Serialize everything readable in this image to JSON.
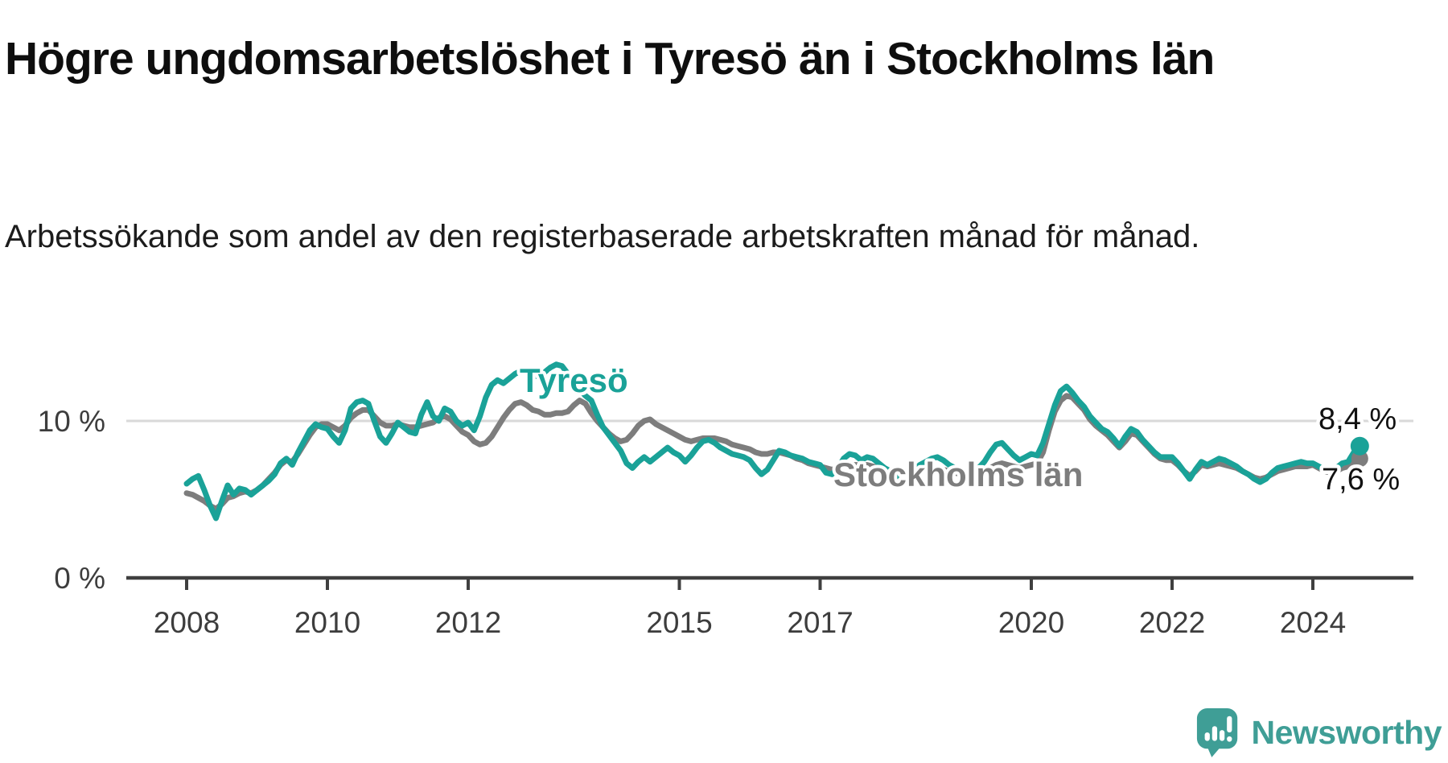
{
  "header": {
    "title": "Högre ungdomsarbetslöshet i Tyresö än i Stockholms län",
    "subtitle": "Arbetssökande som andel av den registerbaserade arbetskraften månad för månad."
  },
  "chart_data": {
    "type": "line",
    "title": "Högre ungdomsarbetslöshet i Tyresö än i Stockholms län",
    "subtitle": "Arbetssökande som andel av den registerbaserade arbetskraften månad för månad.",
    "x_start_year": 2008,
    "frequency": "monthly",
    "x_last_point": "2024-09",
    "xlim_years": [
      2007.1,
      2025.4
    ],
    "ylim": [
      0,
      14.5
    ],
    "y_unit": "%",
    "grid": "single-horizontal-gridline-at-10",
    "legend_position": "inline-labels-on-lines",
    "x_ticks": [
      {
        "value": 2008,
        "label": "2008"
      },
      {
        "value": 2010,
        "label": "2010"
      },
      {
        "value": 2012,
        "label": "2012"
      },
      {
        "value": 2015,
        "label": "2015"
      },
      {
        "value": 2017,
        "label": "2017"
      },
      {
        "value": 2020,
        "label": "2020"
      },
      {
        "value": 2022,
        "label": "2022"
      },
      {
        "value": 2024,
        "label": "2024"
      }
    ],
    "y_ticks": [
      {
        "value": 0,
        "label": "0 %"
      },
      {
        "value": 10,
        "label": "10 %"
      }
    ],
    "series": [
      {
        "name": "Tyresö",
        "color": "#1aa298",
        "end_value": 8.4,
        "end_label": "8,4 %",
        "values": [
          6.0,
          6.3,
          6.5,
          5.6,
          4.6,
          3.8,
          4.9,
          5.9,
          5.3,
          5.7,
          5.6,
          5.3,
          5.6,
          5.9,
          6.2,
          6.6,
          7.3,
          7.6,
          7.2,
          8.0,
          8.7,
          9.4,
          9.8,
          9.6,
          9.5,
          9.0,
          8.6,
          9.4,
          10.8,
          11.2,
          11.3,
          11.1,
          10.0,
          9.0,
          8.6,
          9.2,
          9.9,
          9.6,
          9.3,
          9.2,
          10.4,
          11.2,
          10.3,
          10.0,
          10.8,
          10.6,
          10.0,
          9.7,
          9.9,
          9.4,
          10.3,
          11.5,
          12.3,
          12.6,
          12.4,
          12.7,
          13.0,
          13.2,
          13.0,
          12.8,
          12.9,
          13.1,
          13.4,
          13.6,
          13.5,
          13.0,
          12.4,
          12.0,
          11.6,
          11.3,
          10.4,
          9.6,
          9.1,
          8.6,
          8.1,
          7.3,
          7.0,
          7.4,
          7.7,
          7.4,
          7.7,
          8.0,
          8.3,
          8.0,
          7.8,
          7.4,
          7.8,
          8.3,
          8.7,
          8.8,
          8.6,
          8.3,
          8.1,
          7.9,
          7.8,
          7.7,
          7.5,
          7.0,
          6.6,
          6.9,
          7.5,
          8.1,
          8.0,
          7.8,
          7.7,
          7.6,
          7.4,
          7.3,
          7.2,
          6.7,
          6.6,
          7.0,
          7.6,
          7.9,
          7.8,
          7.5,
          7.7,
          7.6,
          7.3,
          7.0,
          6.8,
          6.5,
          6.4,
          6.6,
          6.9,
          7.2,
          7.4,
          7.6,
          7.7,
          7.5,
          7.2,
          7.0,
          6.8,
          6.6,
          6.7,
          7.0,
          7.4,
          8.0,
          8.5,
          8.6,
          8.2,
          7.8,
          7.5,
          7.7,
          7.9,
          7.8,
          8.6,
          9.8,
          11.0,
          11.9,
          12.2,
          11.8,
          11.3,
          10.9,
          10.3,
          9.9,
          9.5,
          9.3,
          8.9,
          8.4,
          9.0,
          9.5,
          9.3,
          8.8,
          8.4,
          8.0,
          7.7,
          7.7,
          7.7,
          7.3,
          6.8,
          6.3,
          6.9,
          7.4,
          7.2,
          7.4,
          7.6,
          7.5,
          7.3,
          7.1,
          6.8,
          6.6,
          6.3,
          6.1,
          6.3,
          6.7,
          7.0,
          7.1,
          7.2,
          7.3,
          7.4,
          7.3,
          7.3,
          7.1,
          6.9,
          6.8,
          7.0,
          7.3,
          7.4,
          8.0,
          8.4
        ]
      },
      {
        "name": "Stockholms län",
        "color": "#7d7d7d",
        "end_value": 7.6,
        "end_label": "7,6 %",
        "values": [
          5.4,
          5.3,
          5.1,
          4.9,
          4.6,
          4.4,
          4.7,
          5.1,
          5.2,
          5.4,
          5.5,
          5.4,
          5.6,
          5.9,
          6.3,
          6.7,
          7.2,
          7.5,
          7.4,
          7.9,
          8.5,
          9.1,
          9.6,
          9.8,
          9.8,
          9.6,
          9.4,
          9.7,
          10.2,
          10.5,
          10.7,
          10.7,
          10.3,
          9.9,
          9.7,
          9.7,
          9.8,
          9.7,
          9.6,
          9.6,
          9.7,
          9.8,
          9.9,
          10.2,
          10.3,
          10.1,
          9.7,
          9.3,
          9.1,
          8.7,
          8.5,
          8.6,
          9.0,
          9.6,
          10.2,
          10.7,
          11.1,
          11.2,
          11.0,
          10.7,
          10.6,
          10.4,
          10.4,
          10.5,
          10.5,
          10.6,
          11.0,
          11.3,
          11.1,
          10.5,
          10.0,
          9.6,
          9.2,
          8.9,
          8.7,
          8.8,
          9.2,
          9.7,
          10.0,
          10.1,
          9.8,
          9.6,
          9.4,
          9.2,
          9.0,
          8.8,
          8.7,
          8.8,
          8.9,
          8.9,
          8.9,
          8.8,
          8.7,
          8.5,
          8.4,
          8.3,
          8.2,
          8.0,
          7.9,
          7.9,
          8.0,
          8.0,
          7.9,
          7.8,
          7.6,
          7.5,
          7.3,
          7.2,
          7.1,
          7.0,
          6.9,
          7.0,
          7.1,
          7.2,
          7.2,
          7.2,
          7.2,
          7.1,
          7.0,
          6.9,
          6.8,
          6.7,
          6.6,
          6.6,
          6.7,
          6.8,
          6.9,
          7.0,
          7.0,
          6.9,
          6.8,
          6.7,
          6.6,
          6.5,
          6.5,
          6.6,
          6.8,
          7.0,
          7.2,
          7.3,
          7.2,
          7.1,
          7.0,
          7.1,
          7.2,
          7.3,
          8.0,
          9.4,
          10.6,
          11.3,
          11.6,
          11.5,
          11.1,
          10.7,
          10.1,
          9.7,
          9.4,
          9.1,
          8.7,
          8.3,
          8.7,
          9.2,
          9.1,
          8.7,
          8.3,
          7.9,
          7.6,
          7.5,
          7.5,
          7.2,
          6.8,
          6.5,
          6.8,
          7.2,
          7.1,
          7.2,
          7.3,
          7.2,
          7.1,
          7.0,
          6.8,
          6.6,
          6.4,
          6.3,
          6.4,
          6.6,
          6.8,
          6.9,
          7.0,
          7.1,
          7.1,
          7.1,
          7.2,
          7.0,
          6.8,
          6.7,
          6.8,
          7.0,
          7.1,
          7.4,
          7.6
        ]
      }
    ]
  },
  "colors": {
    "accent_teal": "#1aa298",
    "series_gray": "#7d7d7d",
    "gridline": "#d9d9d9",
    "axis": "#3f3f3f",
    "tick_text": "#3d3d3d",
    "value_label_text": "#111111",
    "logo_teal": "#3f9e96"
  },
  "branding": {
    "logo_text": "Newsworthy",
    "logo_icon": "newsworthy-speech-bubble-bar-chart-icon"
  }
}
